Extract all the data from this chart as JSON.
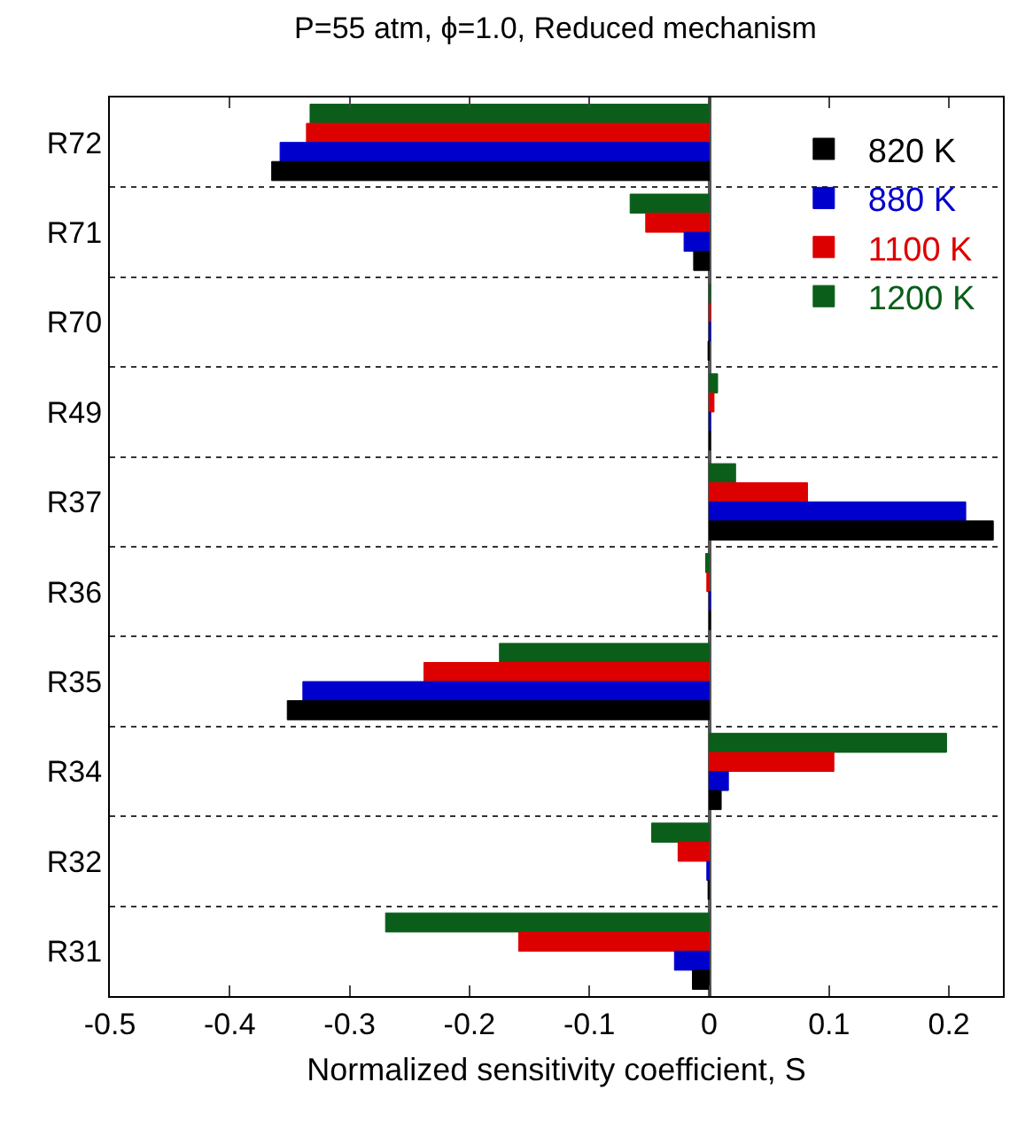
{
  "chart_data": {
    "type": "bar",
    "orientation": "horizontal",
    "title": "P=55 atm, ϕ=1.0, Reduced mechanism",
    "xlabel": "Normalized sensitivity coefficient, S",
    "categories": [
      "R72",
      "R71",
      "R70",
      "R49",
      "R37",
      "R36",
      "R35",
      "R34",
      "R32",
      "R31"
    ],
    "series": [
      {
        "name": "820 K",
        "color": "#000000",
        "values": [
          -0.365,
          -0.013,
          -0.001,
          0.001,
          0.237,
          0.001,
          -0.352,
          0.01,
          -0.001,
          -0.014
        ]
      },
      {
        "name": "880 K",
        "color": "#0000cc",
        "values": [
          -0.358,
          -0.021,
          0.001,
          0.001,
          0.214,
          0.001,
          -0.339,
          0.016,
          -0.002,
          -0.029
        ]
      },
      {
        "name": "1100 K",
        "color": "#dd0000",
        "values": [
          -0.336,
          -0.053,
          0.001,
          0.004,
          0.082,
          -0.002,
          -0.238,
          0.104,
          -0.026,
          -0.159
        ]
      },
      {
        "name": "1200 K",
        "color": "#0a5e1a",
        "values": [
          -0.333,
          -0.066,
          0.001,
          0.007,
          0.022,
          -0.003,
          -0.175,
          0.198,
          -0.048,
          -0.27
        ]
      }
    ],
    "xlim": [
      -0.5,
      0.245
    ],
    "xticks": [
      -0.5,
      -0.4,
      -0.3,
      -0.2,
      -0.1,
      0,
      0.1,
      0.2
    ],
    "grid": "y",
    "legend": "top right"
  }
}
